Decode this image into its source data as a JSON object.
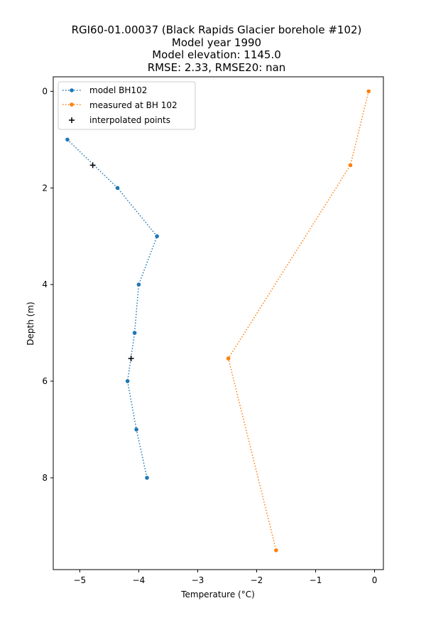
{
  "chart_data": {
    "type": "scatter",
    "title_lines": [
      "RGI60-01.00037 (Black Rapids Glacier borehole #102)",
      "Model year 1990",
      "Model elevation: 1145.0",
      "RMSE: 2.33, RMSE20: nan"
    ],
    "xlabel": "Temperature (°C)",
    "ylabel": "Depth (m)",
    "xlim": [
      -5.45,
      0.15
    ],
    "ylim": [
      9.9,
      -0.3
    ],
    "y_inverted": true,
    "xticks": [
      -5,
      -4,
      -3,
      -2,
      -1,
      0
    ],
    "yticks": [
      0,
      2,
      4,
      6,
      8
    ],
    "grid": false,
    "legend_position": "top-left",
    "series": [
      {
        "name": "model BH102",
        "color": "#1f77b4",
        "style": "dotted-line-with-dots",
        "x": [
          -5.21,
          -4.36,
          -3.69,
          -4.0,
          -4.07,
          -4.19,
          -4.04,
          -3.86
        ],
        "y": [
          1.0,
          2.0,
          3.0,
          4.0,
          5.0,
          6.0,
          7.0,
          8.0
        ]
      },
      {
        "name": "measured at BH 102",
        "color": "#ff7f0e",
        "style": "dotted-line-with-dots",
        "x": [
          -0.1,
          -0.41,
          -2.48,
          -1.67
        ],
        "y": [
          0.0,
          1.53,
          5.53,
          9.5
        ]
      },
      {
        "name": "interpolated points",
        "color": "#000000",
        "style": "plus-markers",
        "x": [
          -4.78,
          -4.13
        ],
        "y": [
          1.53,
          5.53
        ]
      }
    ]
  }
}
